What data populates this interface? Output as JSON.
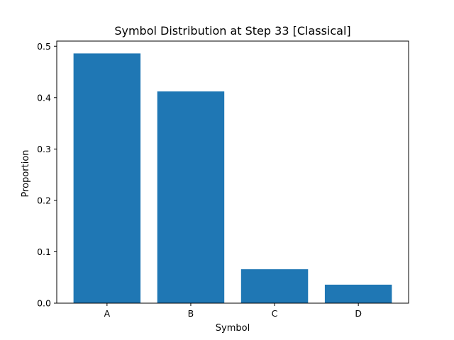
{
  "chart_data": {
    "type": "bar",
    "title": "Symbol Distribution at Step 33 [Classical]",
    "xlabel": "Symbol",
    "ylabel": "Proportion",
    "categories": [
      "A",
      "B",
      "C",
      "D"
    ],
    "values": [
      0.486,
      0.412,
      0.066,
      0.036
    ],
    "ylim": [
      0,
      0.51
    ],
    "yticks": [
      0.0,
      0.1,
      0.2,
      0.3,
      0.4,
      0.5
    ],
    "ytick_labels": [
      "0.0",
      "0.1",
      "0.2",
      "0.3",
      "0.4",
      "0.5"
    ],
    "bar_color": "#1f77b4",
    "grid": false,
    "legend": false
  }
}
